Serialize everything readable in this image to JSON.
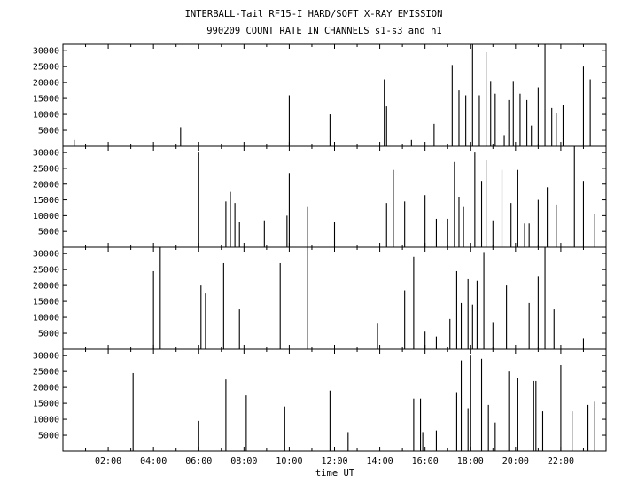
{
  "title_line1": "INTERBALL-Tail RF15-I HARD/SOFT X-RAY EMISSION",
  "title_line2": "990209  COUNT RATE IN CHANNELS s1-s3 and h1",
  "chart_data": [
    {
      "type": "bar",
      "panel": "s1",
      "xlabel": "time UT",
      "xlim_hours": [
        0,
        24
      ],
      "ylim": [
        0,
        32000
      ],
      "yticks": [
        5000,
        10000,
        15000,
        20000,
        25000,
        30000
      ],
      "ytick_labels": [
        "5000",
        "10000",
        "15000",
        "20000",
        "25000",
        "30000"
      ],
      "grid": false,
      "x_hours": [
        0.5,
        5.2,
        10.0,
        11.8,
        14.2,
        14.3,
        15.4,
        16.4,
        17.2,
        17.5,
        17.8,
        18.1,
        18.4,
        18.7,
        18.9,
        19.1,
        19.5,
        19.7,
        19.9,
        20.2,
        20.5,
        20.7,
        21.0,
        21.3,
        21.6,
        21.8,
        22.1,
        23.0,
        23.3
      ],
      "values": [
        2000,
        6000,
        16000,
        10000,
        21000,
        12500,
        2000,
        7000,
        25500,
        17500,
        16000,
        32000,
        16000,
        29500,
        20500,
        16500,
        3500,
        14500,
        20500,
        16500,
        14500,
        6500,
        18500,
        32000,
        12000,
        10500,
        13000,
        25000,
        21000
      ]
    },
    {
      "type": "bar",
      "panel": "s2",
      "xlim_hours": [
        0,
        24
      ],
      "ylim": [
        0,
        32000
      ],
      "yticks": [
        5000,
        10000,
        15000,
        20000,
        25000,
        30000
      ],
      "ytick_labels": [
        "5000",
        "10000",
        "15000",
        "20000",
        "25000",
        "30000"
      ],
      "x_hours": [
        6.0,
        7.2,
        7.4,
        7.6,
        7.8,
        8.9,
        9.9,
        10.0,
        10.8,
        12.0,
        14.3,
        14.6,
        15.1,
        16.0,
        16.5,
        17.0,
        17.3,
        17.5,
        17.7,
        18.2,
        18.5,
        18.7,
        19.0,
        19.4,
        19.8,
        20.1,
        20.4,
        20.6,
        21.0,
        21.4,
        21.8,
        22.6,
        23.0,
        23.5
      ],
      "values": [
        30000,
        14500,
        17500,
        14000,
        8000,
        8500,
        10000,
        23500,
        13000,
        8000,
        14000,
        24500,
        14500,
        16500,
        9000,
        9000,
        27000,
        16000,
        13000,
        30000,
        21000,
        27500,
        8500,
        24500,
        14000,
        24500,
        7500,
        7500,
        15000,
        19000,
        13500,
        32000,
        21000,
        10500
      ]
    },
    {
      "type": "bar",
      "panel": "s3",
      "xlim_hours": [
        0,
        24
      ],
      "ylim": [
        0,
        32000
      ],
      "yticks": [
        5000,
        10000,
        15000,
        20000,
        25000,
        30000
      ],
      "ytick_labels": [
        "5000",
        "10000",
        "15000",
        "20000",
        "25000",
        "30000"
      ],
      "x_hours": [
        4.0,
        4.3,
        6.1,
        6.3,
        7.1,
        7.8,
        9.6,
        10.8,
        13.9,
        15.1,
        15.5,
        16.0,
        16.5,
        17.1,
        17.4,
        17.6,
        17.9,
        18.1,
        18.3,
        18.6,
        19.0,
        19.6,
        20.6,
        21.0,
        21.3,
        21.7,
        23.0
      ],
      "values": [
        24500,
        32000,
        20000,
        17500,
        27000,
        12500,
        27000,
        32000,
        8000,
        18500,
        29000,
        5500,
        4000,
        9500,
        24500,
        14500,
        22000,
        14000,
        21500,
        30500,
        8500,
        20000,
        14500,
        23000,
        32000,
        12500,
        3500
      ]
    },
    {
      "type": "bar",
      "panel": "h1",
      "xlim_hours": [
        0,
        24
      ],
      "ylim": [
        0,
        32000
      ],
      "yticks": [
        5000,
        10000,
        15000,
        20000,
        25000,
        30000
      ],
      "ytick_labels": [
        "5000",
        "10000",
        "15000",
        "20000",
        "25000",
        "30000"
      ],
      "xticks_hours": [
        2,
        4,
        6,
        8,
        10,
        12,
        14,
        16,
        18,
        20,
        22
      ],
      "xtick_labels": [
        "02:00",
        "04:00",
        "06:00",
        "08:00",
        "10:00",
        "12:00",
        "14:00",
        "16:00",
        "18:00",
        "20:00",
        "22:00"
      ],
      "x_hours": [
        3.1,
        6.0,
        7.2,
        8.1,
        9.8,
        11.8,
        12.6,
        15.5,
        15.8,
        15.9,
        16.5,
        17.4,
        17.6,
        17.9,
        18.0,
        18.5,
        18.8,
        19.1,
        19.7,
        20.1,
        20.8,
        20.9,
        21.2,
        22.0,
        22.5,
        23.2,
        23.5
      ],
      "values": [
        24500,
        9500,
        22500,
        17500,
        14000,
        19000,
        6000,
        16500,
        16500,
        6000,
        6500,
        18500,
        28500,
        13500,
        30000,
        29000,
        14500,
        9000,
        25000,
        23000,
        22000,
        22000,
        12500,
        27000,
        12500,
        14500,
        15500
      ]
    }
  ]
}
